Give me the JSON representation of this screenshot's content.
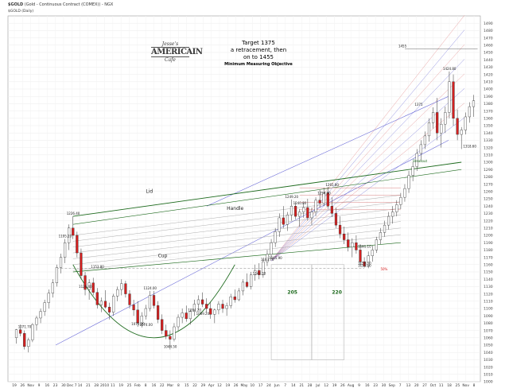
{
  "header": {
    "symbol": "$GOLD",
    "description": "(Gold - Continuous Contract (COMEX)) - NGX",
    "series_label": "$GOLD (Daily)"
  },
  "logo": {
    "line1": "Jesse's",
    "line2": "AMERICAIN",
    "line3": "Cafe"
  },
  "note": {
    "line1": "Target 1375",
    "line2": "a retracement, then",
    "line3": "on to 1455",
    "line4": "Minimum Measuring Objective"
  },
  "chart_data": {
    "type": "candlestick",
    "title": "$GOLD (Gold - Continuous Contract (COMEX)) - NGX",
    "ylim": [
      1000,
      1500
    ],
    "y_ticks": [
      1000,
      1010,
      1020,
      1030,
      1040,
      1050,
      1060,
      1070,
      1080,
      1090,
      1100,
      1110,
      1120,
      1130,
      1140,
      1150,
      1160,
      1170,
      1180,
      1190,
      1200,
      1210,
      1220,
      1230,
      1240,
      1250,
      1260,
      1270,
      1280,
      1290,
      1300,
      1310,
      1320,
      1330,
      1340,
      1350,
      1360,
      1370,
      1380,
      1390,
      1400,
      1410,
      1420,
      1430,
      1440,
      1450,
      1460,
      1470,
      1480,
      1490
    ],
    "x_labels": [
      "19",
      "26",
      "Nov",
      "9",
      "16",
      "23",
      "30",
      "Dec 7",
      "14",
      "21",
      "28",
      "2010",
      "11",
      "19",
      "25",
      "Feb",
      "8",
      "16",
      "22",
      "Mar",
      "8",
      "15",
      "22",
      "29",
      "Apr",
      "12",
      "19",
      "26",
      "May",
      "10",
      "17",
      "24",
      "Jun",
      "7",
      "14",
      "21",
      "28",
      "Jul",
      "12",
      "19",
      "26",
      "Aug",
      "9",
      "16",
      "23",
      "30",
      "Sep",
      "7",
      "13",
      "20",
      "27",
      "Oct",
      "11",
      "18",
      "25",
      "Nov",
      "8"
    ],
    "price_labels": [
      "1071.70",
      "1195.20",
      "1226.40",
      "1126.40",
      "1075.20",
      "1044.50",
      "1074.00",
      "1124.00",
      "1153.80",
      "1144.30",
      "1094.20",
      "1089.20",
      "1163.70",
      "1165.90",
      "1249.20",
      "1254.90",
      "1240.80",
      "1265.80",
      "1158.30",
      "1155.30",
      "1181.10",
      "1375",
      "1424.80",
      "1455",
      "1318.60"
    ],
    "annotations": [
      "Lid",
      "Handle",
      "Cup",
      "205",
      "220",
      "Breakout",
      "50%"
    ],
    "candles": [
      [
        1060,
        1072,
        1052,
        1071
      ],
      [
        1071,
        1078,
        1062,
        1066
      ],
      [
        1066,
        1070,
        1044,
        1048
      ],
      [
        1048,
        1060,
        1040,
        1057
      ],
      [
        1057,
        1080,
        1054,
        1078
      ],
      [
        1078,
        1090,
        1070,
        1087
      ],
      [
        1087,
        1100,
        1080,
        1096
      ],
      [
        1096,
        1112,
        1090,
        1108
      ],
      [
        1108,
        1126,
        1100,
        1121
      ],
      [
        1121,
        1140,
        1115,
        1135
      ],
      [
        1135,
        1160,
        1130,
        1156
      ],
      [
        1156,
        1175,
        1148,
        1170
      ],
      [
        1170,
        1195,
        1162,
        1190
      ],
      [
        1190,
        1215,
        1180,
        1210
      ],
      [
        1210,
        1226,
        1195,
        1200
      ],
      [
        1200,
        1205,
        1170,
        1176
      ],
      [
        1176,
        1182,
        1140,
        1145
      ],
      [
        1145,
        1150,
        1118,
        1126
      ],
      [
        1126,
        1140,
        1112,
        1135
      ],
      [
        1135,
        1142,
        1118,
        1122
      ],
      [
        1122,
        1128,
        1100,
        1105
      ],
      [
        1105,
        1115,
        1095,
        1110
      ],
      [
        1110,
        1125,
        1100,
        1102
      ],
      [
        1102,
        1108,
        1085,
        1095
      ],
      [
        1095,
        1120,
        1090,
        1117
      ],
      [
        1117,
        1130,
        1110,
        1126
      ],
      [
        1126,
        1140,
        1118,
        1134
      ],
      [
        1134,
        1138,
        1115,
        1120
      ],
      [
        1120,
        1125,
        1100,
        1105
      ],
      [
        1105,
        1112,
        1090,
        1098
      ],
      [
        1098,
        1110,
        1075,
        1080
      ],
      [
        1080,
        1095,
        1074,
        1090
      ],
      [
        1090,
        1105,
        1085,
        1100
      ],
      [
        1100,
        1124,
        1096,
        1118
      ],
      [
        1118,
        1124,
        1100,
        1104
      ],
      [
        1104,
        1110,
        1080,
        1085
      ],
      [
        1085,
        1092,
        1065,
        1070
      ],
      [
        1070,
        1078,
        1058,
        1062
      ],
      [
        1062,
        1070,
        1044,
        1058
      ],
      [
        1058,
        1080,
        1055,
        1075
      ],
      [
        1075,
        1092,
        1070,
        1088
      ],
      [
        1088,
        1100,
        1080,
        1094
      ],
      [
        1094,
        1104,
        1082,
        1086
      ],
      [
        1086,
        1098,
        1078,
        1096
      ],
      [
        1096,
        1112,
        1090,
        1106
      ],
      [
        1106,
        1118,
        1098,
        1112
      ],
      [
        1112,
        1122,
        1102,
        1106
      ],
      [
        1106,
        1114,
        1094,
        1100
      ],
      [
        1100,
        1108,
        1086,
        1092
      ],
      [
        1092,
        1100,
        1080,
        1098
      ],
      [
        1098,
        1110,
        1092,
        1106
      ],
      [
        1106,
        1112,
        1094,
        1100
      ],
      [
        1100,
        1108,
        1090,
        1104
      ],
      [
        1104,
        1120,
        1100,
        1116
      ],
      [
        1116,
        1126,
        1108,
        1112
      ],
      [
        1112,
        1128,
        1110,
        1124
      ],
      [
        1124,
        1140,
        1118,
        1136
      ],
      [
        1136,
        1148,
        1128,
        1130
      ],
      [
        1130,
        1150,
        1126,
        1146
      ],
      [
        1146,
        1160,
        1138,
        1152
      ],
      [
        1152,
        1162,
        1140,
        1146
      ],
      [
        1146,
        1168,
        1142,
        1164
      ],
      [
        1164,
        1180,
        1158,
        1174
      ],
      [
        1174,
        1195,
        1168,
        1190
      ],
      [
        1190,
        1210,
        1184,
        1205
      ],
      [
        1205,
        1230,
        1198,
        1224
      ],
      [
        1224,
        1240,
        1210,
        1215
      ],
      [
        1215,
        1232,
        1206,
        1228
      ],
      [
        1228,
        1249,
        1220,
        1240
      ],
      [
        1240,
        1246,
        1222,
        1226
      ],
      [
        1226,
        1236,
        1212,
        1232
      ],
      [
        1232,
        1245,
        1224,
        1238
      ],
      [
        1238,
        1250,
        1220,
        1224
      ],
      [
        1224,
        1238,
        1214,
        1232
      ],
      [
        1232,
        1252,
        1226,
        1248
      ],
      [
        1248,
        1262,
        1238,
        1244
      ],
      [
        1244,
        1265,
        1240,
        1258
      ],
      [
        1258,
        1266,
        1236,
        1240
      ],
      [
        1240,
        1252,
        1225,
        1230
      ],
      [
        1230,
        1238,
        1210,
        1214
      ],
      [
        1214,
        1226,
        1196,
        1202
      ],
      [
        1202,
        1212,
        1188,
        1194
      ],
      [
        1194,
        1204,
        1178,
        1184
      ],
      [
        1184,
        1196,
        1170,
        1190
      ],
      [
        1190,
        1200,
        1175,
        1180
      ],
      [
        1180,
        1188,
        1158,
        1164
      ],
      [
        1164,
        1170,
        1156,
        1158
      ],
      [
        1158,
        1178,
        1155,
        1172
      ],
      [
        1172,
        1186,
        1164,
        1180
      ],
      [
        1180,
        1198,
        1176,
        1194
      ],
      [
        1194,
        1210,
        1188,
        1204
      ],
      [
        1204,
        1220,
        1198,
        1214
      ],
      [
        1214,
        1232,
        1208,
        1226
      ],
      [
        1226,
        1240,
        1216,
        1232
      ],
      [
        1232,
        1248,
        1226,
        1242
      ],
      [
        1242,
        1258,
        1236,
        1252
      ],
      [
        1252,
        1270,
        1246,
        1264
      ],
      [
        1264,
        1288,
        1258,
        1282
      ],
      [
        1282,
        1300,
        1274,
        1294
      ],
      [
        1294,
        1318,
        1288,
        1312
      ],
      [
        1312,
        1330,
        1302,
        1324
      ],
      [
        1324,
        1342,
        1318,
        1336
      ],
      [
        1336,
        1360,
        1328,
        1354
      ],
      [
        1354,
        1375,
        1346,
        1368
      ],
      [
        1368,
        1388,
        1330,
        1340
      ],
      [
        1340,
        1360,
        1320,
        1352
      ],
      [
        1352,
        1376,
        1340,
        1368
      ],
      [
        1368,
        1424,
        1360,
        1410
      ],
      [
        1410,
        1420,
        1350,
        1360
      ],
      [
        1360,
        1372,
        1330,
        1338
      ],
      [
        1338,
        1348,
        1318,
        1344
      ],
      [
        1344,
        1368,
        1338,
        1362
      ],
      [
        1362,
        1382,
        1354,
        1376
      ],
      [
        1376,
        1392,
        1362,
        1384
      ]
    ]
  }
}
